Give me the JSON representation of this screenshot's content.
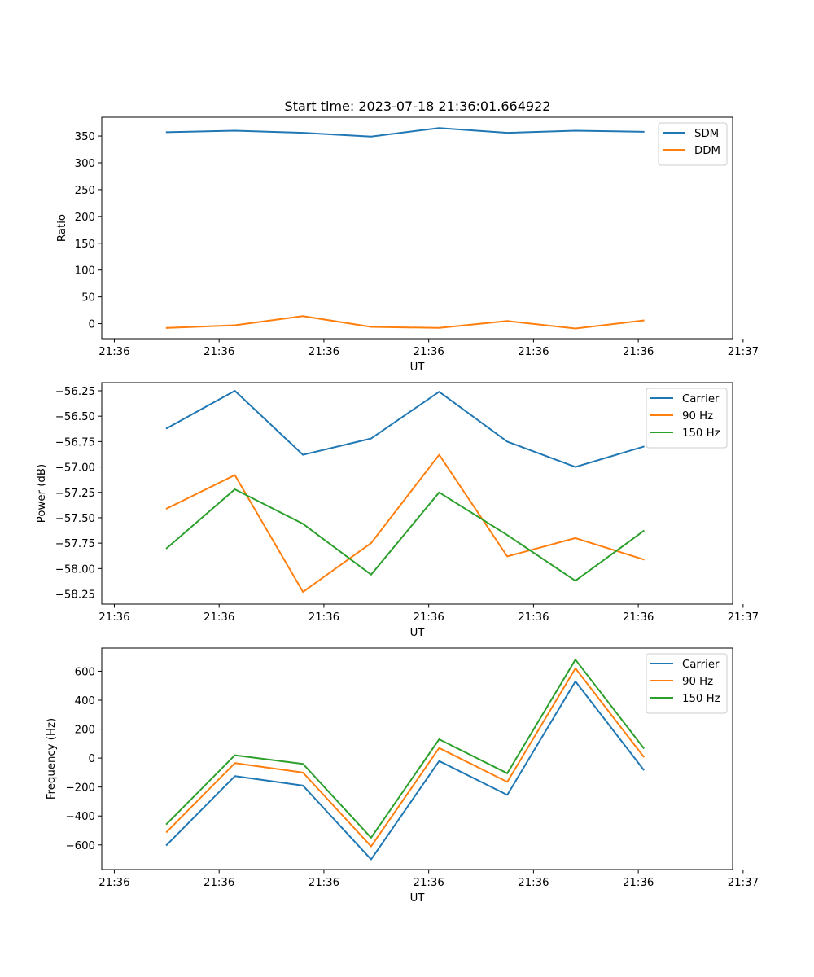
{
  "figure_title": "Start time: 2023-07-18 21:36:01.664922",
  "chart_data": [
    {
      "type": "line",
      "title": "Start time: 2023-07-18 21:36:01.664922",
      "xlabel": "UT",
      "ylabel": "Ratio",
      "x_ticks": [
        0,
        1,
        2,
        3,
        4,
        5,
        6
      ],
      "x_tick_labels": [
        "21:36",
        "21:36",
        "21:36",
        "21:36",
        "21:36",
        "21:36",
        "21:37"
      ],
      "xlim": [
        -0.12,
        5.9
      ],
      "x": [
        0.5,
        1.15,
        1.8,
        2.45,
        3.1,
        3.75,
        4.4,
        5.05
      ],
      "ylim": [
        -28,
        385
      ],
      "y_ticks": [
        0,
        50,
        100,
        150,
        200,
        250,
        300,
        350
      ],
      "y_tick_labels": [
        "0",
        "50",
        "100",
        "150",
        "200",
        "250",
        "300",
        "350"
      ],
      "legend_loc": "upper right",
      "series": [
        {
          "name": "SDM",
          "color": "#1f77b4",
          "values": [
            357,
            360,
            356,
            349,
            365,
            356,
            360,
            358
          ]
        },
        {
          "name": "DDM",
          "color": "#ff7f0e",
          "values": [
            -8,
            -3,
            14,
            -6,
            -8,
            5,
            -9,
            6
          ]
        }
      ]
    },
    {
      "type": "line",
      "title": "",
      "xlabel": "UT",
      "ylabel": "Power (dB)",
      "x_ticks": [
        0,
        1,
        2,
        3,
        4,
        5,
        6
      ],
      "x_tick_labels": [
        "21:36",
        "21:36",
        "21:36",
        "21:36",
        "21:36",
        "21:36",
        "21:37"
      ],
      "xlim": [
        -0.12,
        5.9
      ],
      "x": [
        0.5,
        1.15,
        1.8,
        2.45,
        3.1,
        3.75,
        4.4,
        5.05
      ],
      "ylim": [
        -58.35,
        -56.17
      ],
      "y_ticks": [
        -56.25,
        -56.5,
        -56.75,
        -57.0,
        -57.25,
        -57.5,
        -57.75,
        -58.0,
        -58.25
      ],
      "y_tick_labels": [
        "−56.25",
        "−56.50",
        "−56.75",
        "−57.00",
        "−57.25",
        "−57.50",
        "−57.75",
        "−58.00",
        "−58.25"
      ],
      "legend_loc": "upper right",
      "series": [
        {
          "name": "Carrier",
          "color": "#1f77b4",
          "values": [
            -56.62,
            -56.25,
            -56.88,
            -56.72,
            -56.26,
            -56.75,
            -57.0,
            -56.8
          ]
        },
        {
          "name": "90 Hz",
          "color": "#ff7f0e",
          "values": [
            -57.41,
            -57.08,
            -58.23,
            -57.75,
            -56.88,
            -57.88,
            -57.7,
            -57.91
          ]
        },
        {
          "name": "150 Hz",
          "color": "#2ca02c",
          "values": [
            -57.8,
            -57.22,
            -57.56,
            -58.06,
            -57.25,
            -57.67,
            -58.12,
            -57.63
          ]
        }
      ]
    },
    {
      "type": "line",
      "title": "",
      "xlabel": "UT",
      "ylabel": "Frequency (Hz)",
      "x_ticks": [
        0,
        1,
        2,
        3,
        4,
        5,
        6
      ],
      "x_tick_labels": [
        "21:36",
        "21:36",
        "21:36",
        "21:36",
        "21:36",
        "21:36",
        "21:37"
      ],
      "xlim": [
        -0.12,
        5.9
      ],
      "x": [
        0.5,
        1.15,
        1.8,
        2.45,
        3.1,
        3.75,
        4.4,
        5.05
      ],
      "ylim": [
        -770,
        760
      ],
      "y_ticks": [
        600,
        400,
        200,
        0,
        -200,
        -400,
        -600
      ],
      "y_tick_labels": [
        "600",
        "400",
        "200",
        "0",
        "−200",
        "−400",
        "−600"
      ],
      "legend_loc": "upper right",
      "series": [
        {
          "name": "Carrier",
          "color": "#1f77b4",
          "values": [
            -600,
            -125,
            -190,
            -700,
            -20,
            -255,
            530,
            -80
          ]
        },
        {
          "name": "90 Hz",
          "color": "#ff7f0e",
          "values": [
            -510,
            -35,
            -100,
            -610,
            70,
            -165,
            620,
            10
          ]
        },
        {
          "name": "150 Hz",
          "color": "#2ca02c",
          "values": [
            -455,
            20,
            -40,
            -550,
            130,
            -105,
            680,
            70
          ]
        }
      ]
    }
  ]
}
